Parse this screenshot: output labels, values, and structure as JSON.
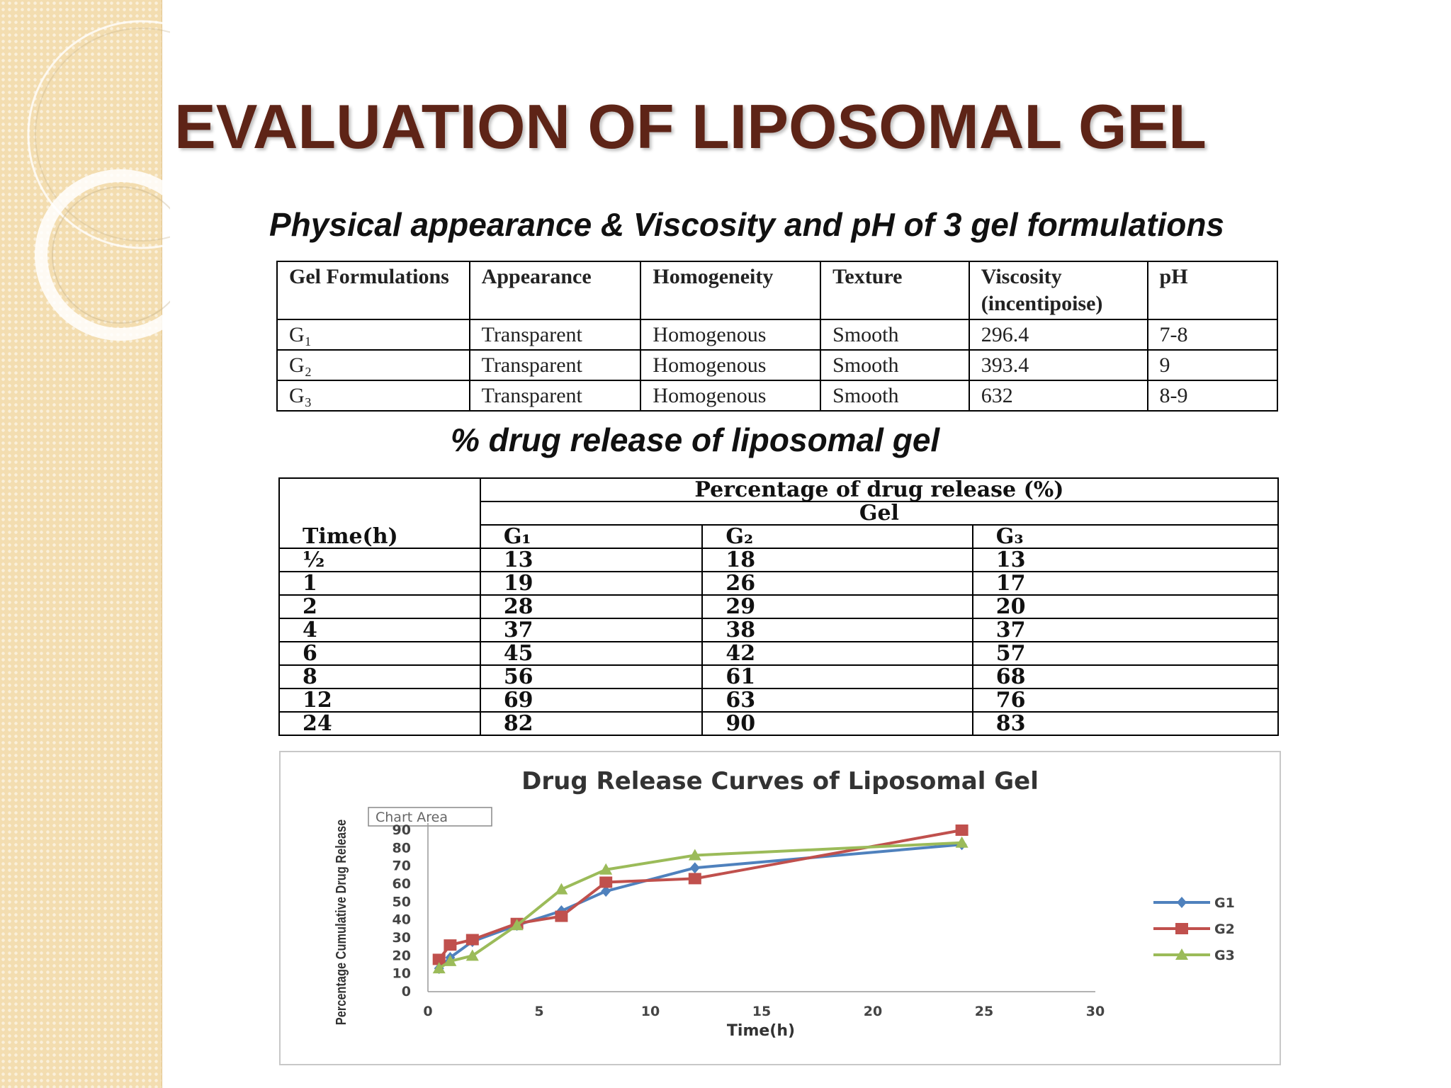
{
  "title": "EVALUATION OF LIPOSOMAL GEL",
  "subheading_properties": "Physical appearance & Viscosity and pH of 3 gel formulations",
  "subheading_release": "% drug release of liposomal gel",
  "properties_table": {
    "headers": [
      "Gel Formulations",
      "Appearance",
      "Homogeneity",
      "Texture",
      "Viscosity (incentipoise)",
      "pH"
    ],
    "rows": [
      [
        "G₁",
        "Transparent",
        "Homogenous",
        "Smooth",
        "296.4",
        "7-8"
      ],
      [
        "G₂",
        "Transparent",
        "Homogenous",
        "Smooth",
        "393.4",
        "9"
      ],
      [
        "G₃",
        "Transparent",
        "Homogenous",
        "Smooth",
        "632",
        "8-9"
      ]
    ]
  },
  "release_table": {
    "header_main": "Percentage of drug release (%)",
    "header_sub": "Gel",
    "time_header": "Time(h)",
    "columns": [
      "G₁",
      "G₂",
      "G₃"
    ],
    "rows": [
      [
        "½",
        "13",
        "18",
        "13"
      ],
      [
        "1",
        "19",
        "26",
        "17"
      ],
      [
        "2",
        "28",
        "29",
        "20"
      ],
      [
        "4",
        "37",
        "38",
        "37"
      ],
      [
        "6",
        "45",
        "42",
        "57"
      ],
      [
        "8",
        "56",
        "61",
        "68"
      ],
      [
        "12",
        "69",
        "63",
        "76"
      ],
      [
        "24",
        "82",
        "90",
        "83"
      ]
    ]
  },
  "chart_data": {
    "type": "line",
    "title": "Drug Release Curves of Liposomal Gel",
    "tooltip": "Chart Area",
    "xlabel": "Time(h)",
    "ylabel": "Percentage Cumulative Drug Release",
    "xlim": [
      0,
      30
    ],
    "ylim": [
      0,
      90
    ],
    "xticks": [
      0,
      5,
      10,
      15,
      20,
      25,
      30
    ],
    "yticks": [
      0,
      10,
      20,
      30,
      40,
      50,
      60,
      70,
      80,
      90
    ],
    "x": [
      0.5,
      1,
      2,
      4,
      6,
      8,
      12,
      24
    ],
    "legend_position": "right",
    "series": [
      {
        "name": "G1",
        "color": "#4f81bd",
        "marker": "diamond",
        "values": [
          13,
          19,
          28,
          37,
          45,
          56,
          69,
          82
        ]
      },
      {
        "name": "G2",
        "color": "#c0504d",
        "marker": "square",
        "values": [
          18,
          26,
          29,
          38,
          42,
          61,
          63,
          90
        ]
      },
      {
        "name": "G3",
        "color": "#9bbb59",
        "marker": "triangle",
        "values": [
          13,
          17,
          20,
          37,
          57,
          68,
          76,
          83
        ]
      }
    ]
  }
}
